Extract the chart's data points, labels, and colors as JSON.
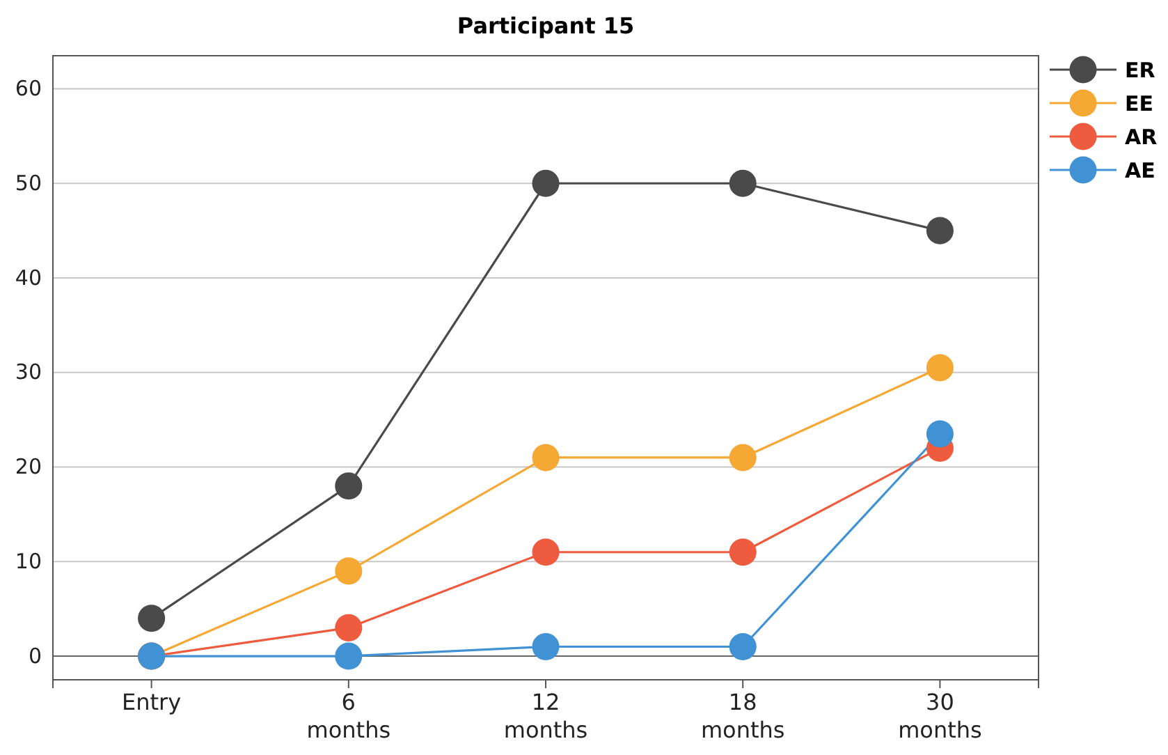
{
  "chart_data": {
    "type": "line",
    "title": "Participant 15",
    "categories": [
      "Entry",
      "6 months",
      "12 months",
      "18 months",
      "30 months"
    ],
    "series": [
      {
        "name": "ER",
        "color": "#4a4a4a",
        "values": [
          4,
          18,
          50,
          50,
          45
        ]
      },
      {
        "name": "EE",
        "color": "#f5a833",
        "values": [
          0,
          9,
          21,
          21,
          30.5
        ]
      },
      {
        "name": "AR",
        "color": "#ee5b3f",
        "values": [
          0,
          3,
          11,
          11,
          22
        ]
      },
      {
        "name": "AE",
        "color": "#4092d4",
        "values": [
          0,
          0,
          1,
          1,
          23.5
        ]
      }
    ],
    "ylim": [
      -2.5,
      63.5
    ],
    "yticks": [
      0,
      10,
      20,
      30,
      40,
      50,
      60
    ],
    "grid": "y",
    "legend": "top right",
    "marker": "circle",
    "line_style": "solid"
  }
}
